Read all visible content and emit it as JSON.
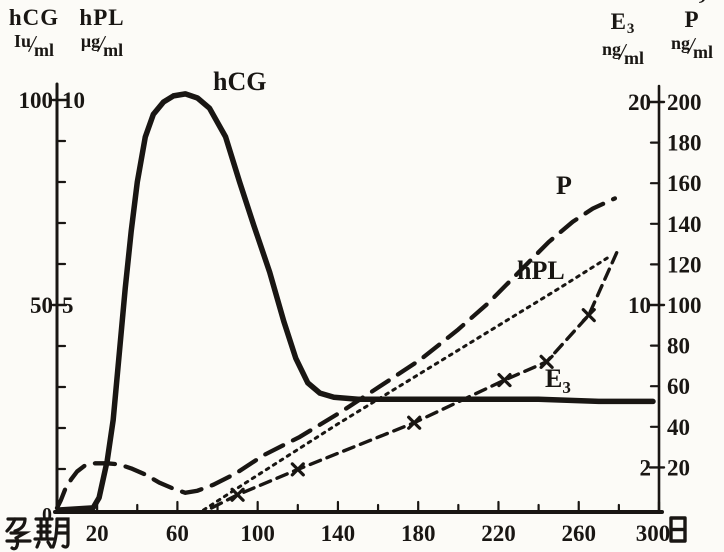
{
  "colors": {
    "paper": "#fcfbf7",
    "ink": "#191613"
  },
  "axis_titles": {
    "hcg": {
      "name": "hCG",
      "unit_num": "Iu",
      "unit_den": "ml"
    },
    "hpl": {
      "name": "hPL",
      "unit_num": "μg",
      "unit_den": "ml"
    },
    "e3": {
      "base": "E",
      "sub": "3",
      "unit_num": "ng",
      "unit_den": "ml"
    },
    "p": {
      "name": "P",
      "accent": "’",
      "unit_num": "ng",
      "unit_den": "ml"
    }
  },
  "chart_data": {
    "type": "line",
    "x_axis": {
      "title": "孕期",
      "unit": "日",
      "range": [
        0,
        300
      ],
      "tick_step": 20,
      "label_days": [
        20,
        60,
        100,
        140,
        180,
        220,
        260,
        300
      ],
      "origin_label": "0"
    },
    "y_axes": {
      "hCG": {
        "side": "left",
        "unit": "Iu/ml",
        "range": [
          0,
          100
        ],
        "tick_labels": [
          100,
          50
        ]
      },
      "hPL": {
        "side": "left",
        "unit": "μg/ml",
        "range": [
          0,
          10
        ],
        "tick_labels": [
          10,
          5
        ]
      },
      "E3": {
        "side": "right",
        "unit": "ng/ml",
        "range": [
          0,
          20
        ],
        "tick_labels": [
          20,
          10,
          2
        ]
      },
      "P": {
        "side": "right",
        "unit": "ng/ml",
        "range": [
          0,
          200
        ],
        "tick_labels": [
          200,
          180,
          160,
          140,
          120,
          100,
          80,
          60,
          40,
          20
        ]
      }
    },
    "series": [
      {
        "name": "P",
        "label": "P",
        "scale": "P",
        "style": "longdash",
        "points": [
          [
            0,
            0
          ],
          [
            2,
            4
          ],
          [
            4,
            9
          ],
          [
            7,
            14
          ],
          [
            10,
            18
          ],
          [
            14,
            21
          ],
          [
            19,
            22
          ],
          [
            25,
            22
          ],
          [
            31,
            21.5
          ],
          [
            37,
            19.5
          ],
          [
            44,
            16.5
          ],
          [
            51,
            12.5
          ],
          [
            58,
            9.5
          ],
          [
            64,
            7.5
          ],
          [
            70,
            8.5
          ],
          [
            78,
            11.5
          ],
          [
            89,
            17
          ],
          [
            103,
            26
          ],
          [
            121,
            35
          ],
          [
            141,
            47
          ],
          [
            161,
            60
          ],
          [
            181,
            73
          ],
          [
            200,
            88
          ],
          [
            215,
            101
          ],
          [
            230,
            116
          ],
          [
            245,
            131
          ],
          [
            257,
            141
          ],
          [
            267,
            147.5
          ],
          [
            278,
            152.5
          ]
        ]
      },
      {
        "name": "hPL",
        "label": "hPL",
        "scale": "hPL",
        "style": "dot",
        "points": [
          [
            73,
            0
          ],
          [
            100,
            0.85
          ],
          [
            140,
            2.1
          ],
          [
            180,
            3.3
          ],
          [
            220,
            4.5
          ],
          [
            250,
            5.4
          ],
          [
            276,
            6.2
          ]
        ]
      },
      {
        "name": "E3",
        "label": "E",
        "label_sub": "3",
        "scale": "E3",
        "style": "dashx",
        "points": [
          [
            77,
            0
          ],
          [
            90,
            0.65
          ],
          [
            120,
            1.9
          ],
          [
            178,
            4.2
          ],
          [
            223,
            6.3
          ],
          [
            244,
            7.2
          ],
          [
            265,
            9.5
          ],
          [
            279,
            12.6
          ]
        ],
        "markers": [
          [
            90,
            0.65
          ],
          [
            120,
            1.9
          ],
          [
            178,
            4.2
          ],
          [
            223,
            6.3
          ],
          [
            244,
            7.2
          ],
          [
            265,
            9.5
          ]
        ]
      },
      {
        "name": "hCG",
        "label": "hCG",
        "scale": "hCG",
        "style": "solid",
        "points": [
          [
            1,
            0
          ],
          [
            18,
            0.5
          ],
          [
            21,
            3
          ],
          [
            25,
            12
          ],
          [
            28,
            22
          ],
          [
            31,
            38
          ],
          [
            34,
            54
          ],
          [
            37,
            68
          ],
          [
            40,
            80
          ],
          [
            44,
            91
          ],
          [
            48,
            96.5
          ],
          [
            53,
            99.5
          ],
          [
            58,
            101
          ],
          [
            64,
            101.5
          ],
          [
            70,
            100.5
          ],
          [
            76,
            98
          ],
          [
            84,
            91
          ],
          [
            91,
            80
          ],
          [
            98,
            69.5
          ],
          [
            106,
            58
          ],
          [
            113,
            46
          ],
          [
            119,
            37
          ],
          [
            125,
            31
          ],
          [
            131,
            28.5
          ],
          [
            138,
            27.5
          ],
          [
            150,
            27
          ],
          [
            180,
            27
          ],
          [
            210,
            27
          ],
          [
            240,
            27
          ],
          [
            270,
            26.5
          ],
          [
            297,
            26.5
          ]
        ]
      }
    ]
  }
}
